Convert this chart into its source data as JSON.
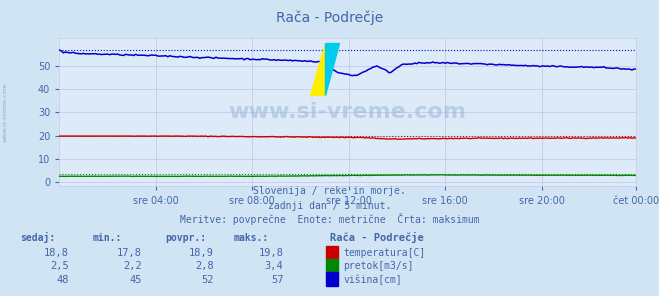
{
  "title": "Rača - Podrečje",
  "bg_color": "#d0e4f4",
  "plot_bg_color": "#ddeaf8",
  "grid_color_h": "#c8c8e8",
  "grid_color_v": "#c8c8e8",
  "text_color": "#4466aa",
  "xlabel_ticks": [
    "sre 04:00",
    "sre 08:00",
    "sre 12:00",
    "sre 16:00",
    "sre 20:00",
    "čet 00:00"
  ],
  "yticks": [
    0,
    10,
    20,
    30,
    40,
    50
  ],
  "ylim": [
    -2,
    62
  ],
  "xlim": [
    0,
    287
  ],
  "subtitle1": "Slovenija / reke in morje.",
  "subtitle2": "zadnji dan / 5 minut.",
  "subtitle3": "Meritve: povprečne  Enote: metrične  Črta: maksimum",
  "watermark": "www.si-vreme.com",
  "table_headers": [
    "sedaj:",
    "min.:",
    "povpr.:",
    "maks.:"
  ],
  "table_col0": [
    "18,8",
    "2,5",
    "48"
  ],
  "table_col1": [
    "17,8",
    "2,2",
    "45"
  ],
  "table_col2": [
    "18,9",
    "2,8",
    "52"
  ],
  "table_col3": [
    "19,8",
    "3,4",
    "57"
  ],
  "legend_title": "Rača - Podrečje",
  "legend_labels": [
    "temperatura[C]",
    "pretok[m3/s]",
    "višina[cm]"
  ],
  "legend_colors": [
    "#cc0000",
    "#008800",
    "#0000cc"
  ],
  "temp_color": "#cc0000",
  "flow_color": "#008800",
  "height_color": "#0000cc",
  "temp_max": 19.8,
  "flow_max": 3.4,
  "height_max": 57,
  "tick_x_positions": [
    48,
    96,
    144,
    192,
    240,
    287
  ]
}
